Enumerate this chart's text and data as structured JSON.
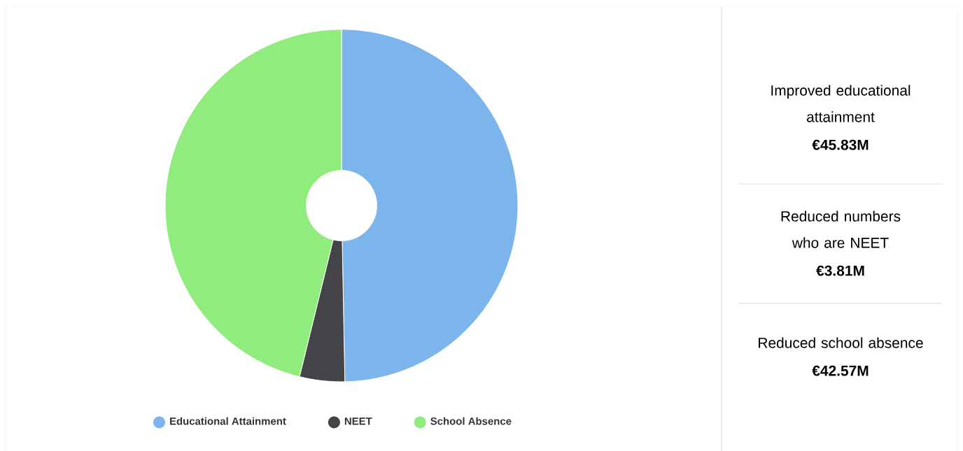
{
  "chart_data": [
    {
      "type": "donut",
      "categories": [
        "Educational Attainment",
        "NEET",
        "School Absence"
      ],
      "values": [
        49.7,
        4.13,
        46.17
      ],
      "colors": [
        "#7cb5ec",
        "#434348",
        "#90ed7d"
      ],
      "legend": "bottom"
    },
    {
      "type": "other",
      "annotations": [
        "Improved educational attainment",
        "€45.83M",
        "Reduced numbers who are NEET",
        "€3.81M",
        "Reduced school absence",
        "€42.57M"
      ]
    }
  ]
}
